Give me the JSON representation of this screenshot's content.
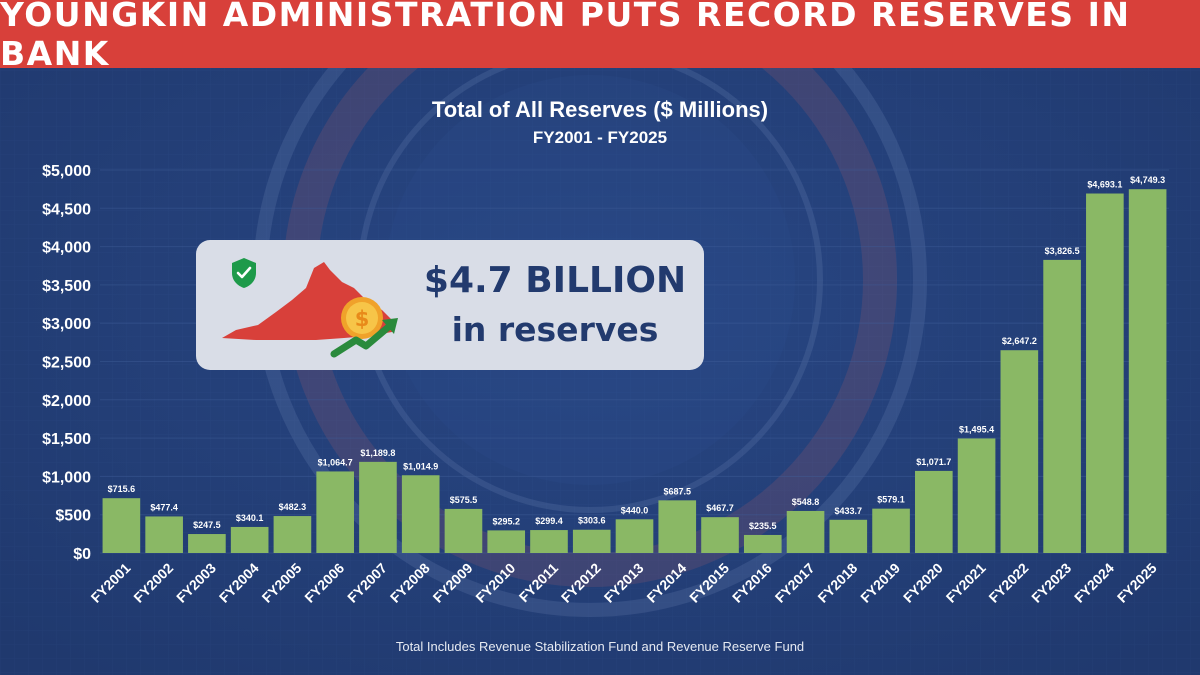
{
  "banner": {
    "headline": "YOUNGKIN ADMINISTRATION PUTS RECORD RESERVES IN BANK"
  },
  "callout": {
    "amount": "$4.7 BILLION",
    "text": "in reserves"
  },
  "footnote": "Total Includes Revenue Stabilization Fund and Revenue Reserve Fund",
  "colors": {
    "banner": "#d8403a",
    "background": "#24407a",
    "bar": "#8ab865",
    "callout_text": "#223a6e"
  },
  "chart_data": {
    "type": "bar",
    "title": "Total of All Reserves ($ Millions)",
    "subtitle": "FY2001 - FY2025",
    "xlabel": "",
    "ylabel": "",
    "ylim": [
      0,
      5000
    ],
    "yticks": [
      0,
      500,
      1000,
      1500,
      2000,
      2500,
      3000,
      3500,
      4000,
      4500,
      5000
    ],
    "ytick_labels": [
      "$0",
      "$500",
      "$1,000",
      "$1,500",
      "$2,000",
      "$2,500",
      "$3,000",
      "$3,500",
      "$4,000",
      "$4,500",
      "$5,000"
    ],
    "grid": true,
    "categories": [
      "FY2001",
      "FY2002",
      "FY2003",
      "FY2004",
      "FY2005",
      "FY2006",
      "FY2007",
      "FY2008",
      "FY2009",
      "FY2010",
      "FY2011",
      "FY2012",
      "FY2013",
      "FY2014",
      "FY2015",
      "FY2016",
      "FY2017",
      "FY2018",
      "FY2019",
      "FY2020",
      "FY2021",
      "FY2022",
      "FY2023",
      "FY2024",
      "FY2025"
    ],
    "values": [
      715.6,
      477.4,
      247.5,
      340.1,
      482.3,
      1064.7,
      1189.8,
      1014.9,
      575.5,
      295.2,
      299.4,
      303.6,
      440.0,
      687.5,
      467.7,
      235.5,
      548.8,
      433.7,
      579.1,
      1071.7,
      1495.4,
      2647.2,
      3826.5,
      4693.1,
      4749.3
    ],
    "data_labels": [
      "$715.6",
      "$477.4",
      "$247.5",
      "$340.1",
      "$482.3",
      "$1,064.7",
      "$1,189.8",
      "$1,014.9",
      "$575.5",
      "$295.2",
      "$299.4",
      "$303.6",
      "$440.0",
      "$687.5",
      "$467.7",
      "$235.5",
      "$548.8",
      "$433.7",
      "$579.1",
      "$1,071.7",
      "$1,495.4",
      "$2,647.2",
      "$3,826.5",
      "$4,693.1",
      "$4,749.3"
    ]
  }
}
